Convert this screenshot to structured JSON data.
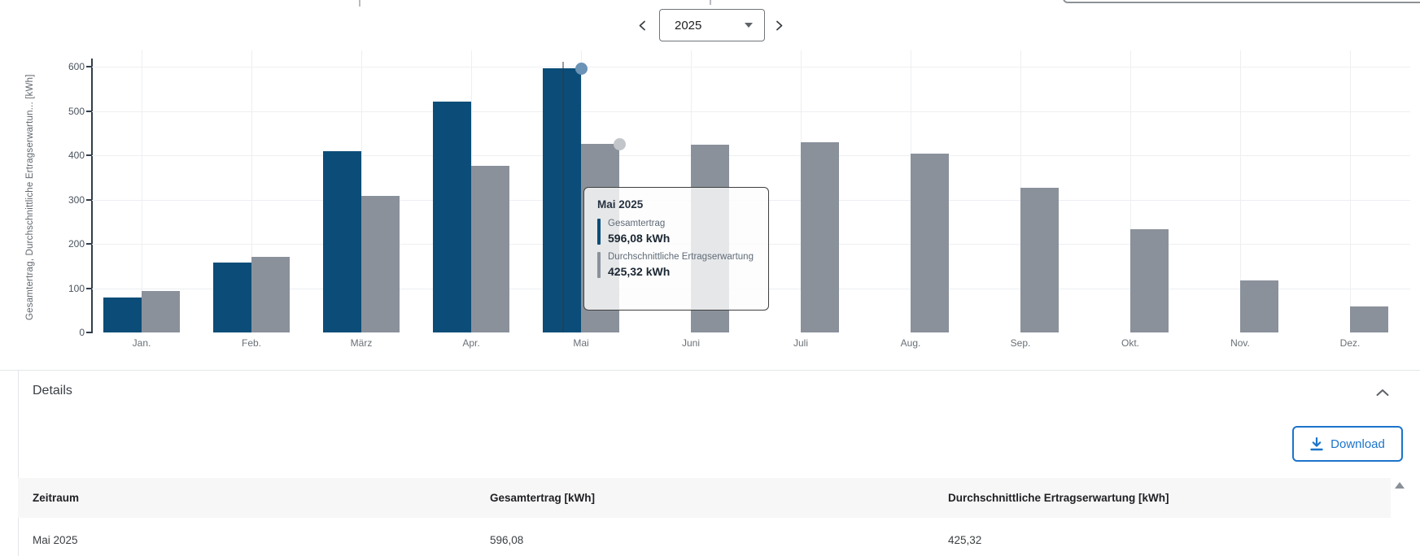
{
  "toolbar": {
    "year_selector": {
      "value": "2025"
    },
    "prev_icon": "chevron-left",
    "next_icon": "chevron-right"
  },
  "chart_data": {
    "type": "bar",
    "title": "",
    "ylabel": "Gesamtertrag, Durchschnittliche Ertragserwartun... [kWh]",
    "ylim": [
      0,
      600
    ],
    "ytick_step": 100,
    "grid": true,
    "categories": [
      "Jan.",
      "Feb.",
      "März",
      "Apr.",
      "Mai",
      "Juni",
      "Juli",
      "Aug.",
      "Sep.",
      "Okt.",
      "Nov.",
      "Dez."
    ],
    "series": [
      {
        "name": "Gesamtertrag",
        "color": "#0b4d78",
        "values": [
          78,
          157,
          409,
          521,
          596.08,
          null,
          null,
          null,
          null,
          null,
          null,
          null
        ]
      },
      {
        "name": "Durchschnittliche Ertragserwartung",
        "color": "#8a919b",
        "values": [
          93,
          171,
          308,
          377,
          425.32,
          423,
          430,
          404,
          327,
          233,
          118,
          59
        ]
      }
    ],
    "hover": {
      "category": "Mai",
      "category_index": 4,
      "dot_colors": [
        "#6a93b6",
        "#c2c6cb"
      ]
    }
  },
  "tooltip": {
    "title": "Mai 2025",
    "items": [
      {
        "label": "Gesamtertrag",
        "value": "596,08 kWh",
        "color": "#0b4d78"
      },
      {
        "label": "Durchschnittliche Ertragserwartung",
        "value": "425,32 kWh",
        "color": "#8a919b"
      }
    ]
  },
  "details": {
    "title": "Details",
    "collapse_icon": "chevron-up",
    "download_label": "Download",
    "table": {
      "columns": [
        "Zeitraum",
        "Gesamtertrag [kWh]",
        "Durchschnittliche Ertragserwartung [kWh]"
      ],
      "rows": [
        [
          "Mai 2025",
          "596,08",
          "425,32"
        ]
      ]
    }
  },
  "colors": {
    "bar_primary": "#0b4d78",
    "bar_secondary": "#8a919b",
    "accent_blue": "#1b74ca",
    "grid": "#edeff2",
    "axis": "#323e4a"
  }
}
